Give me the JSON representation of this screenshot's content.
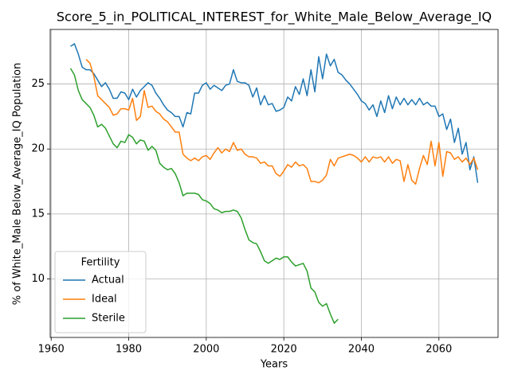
{
  "chart_data": {
    "type": "line",
    "title": "Score_5_in_POLITICAL_INTEREST_for_White_Male_Below_Average_IQ",
    "xlabel": "Years",
    "ylabel": "% of White_Male Below_Average_IQ Population",
    "x": [
      1965,
      1966,
      1967,
      1968,
      1969,
      1970,
      1971,
      1972,
      1973,
      1974,
      1975,
      1976,
      1977,
      1978,
      1979,
      1980,
      1981,
      1982,
      1983,
      1984,
      1985,
      1986,
      1987,
      1988,
      1989,
      1990,
      1991,
      1992,
      1993,
      1994,
      1995,
      1996,
      1997,
      1998,
      1999,
      2000,
      2001,
      2002,
      2003,
      2004,
      2005,
      2006,
      2007,
      2008,
      2009,
      2010,
      2011,
      2012,
      2013,
      2014,
      2015,
      2016,
      2017,
      2018,
      2019,
      2020,
      2021,
      2022,
      2023,
      2024,
      2025,
      2026,
      2027,
      2028,
      2029,
      2030,
      2031,
      2032,
      2033,
      2034,
      2035,
      2036,
      2037,
      2038,
      2039,
      2040,
      2041,
      2042,
      2043,
      2044,
      2045,
      2046,
      2047,
      2048,
      2049,
      2050,
      2051,
      2052,
      2053,
      2054,
      2055,
      2056,
      2057,
      2058,
      2059,
      2060,
      2061,
      2062,
      2063,
      2064,
      2065,
      2066,
      2067,
      2068,
      2069,
      2070
    ],
    "series": [
      {
        "name": "Actual",
        "color": "#1f77b4",
        "values": [
          27.9,
          28.1,
          27.3,
          26.3,
          26.1,
          26.1,
          25.8,
          25.3,
          24.8,
          25.1,
          24.6,
          23.9,
          23.9,
          24.4,
          24.3,
          23.8,
          24.6,
          24.0,
          24.5,
          24.8,
          25.1,
          24.9,
          24.3,
          23.9,
          23.4,
          23.0,
          22.8,
          22.5,
          22.5,
          21.7,
          22.8,
          22.7,
          24.3,
          24.3,
          24.9,
          25.1,
          24.6,
          24.9,
          24.7,
          24.5,
          24.9,
          25.0,
          26.1,
          25.2,
          25.1,
          25.1,
          24.9,
          24.0,
          24.7,
          23.4,
          24.1,
          23.4,
          23.5,
          22.9,
          23.0,
          23.2,
          24.0,
          23.7,
          24.8,
          24.2,
          25.4,
          24.1,
          26.1,
          24.4,
          27.1,
          25.4,
          27.3,
          26.4,
          26.9,
          25.9,
          25.7,
          25.3,
          25.0,
          24.6,
          24.2,
          23.7,
          23.5,
          23.0,
          23.4,
          22.5,
          23.7,
          22.8,
          24.1,
          23.1,
          24.0,
          23.4,
          23.9,
          23.4,
          23.8,
          23.4,
          23.9,
          23.4,
          23.6,
          23.3,
          23.3,
          22.5,
          22.7,
          21.5,
          22.3,
          20.5,
          21.6,
          19.6,
          20.5,
          18.4,
          19.4,
          17.4
        ]
      },
      {
        "name": "Ideal",
        "color": "#ff7f0e",
        "values": [
          null,
          null,
          null,
          null,
          26.9,
          26.6,
          25.6,
          24.1,
          23.8,
          23.5,
          23.2,
          22.6,
          22.7,
          23.1,
          23.1,
          23.0,
          23.9,
          22.2,
          22.5,
          24.5,
          23.2,
          23.3,
          22.9,
          22.7,
          22.3,
          22.1,
          21.7,
          21.3,
          21.3,
          19.6,
          19.3,
          19.1,
          19.3,
          19.1,
          19.4,
          19.5,
          19.2,
          19.7,
          20.1,
          19.7,
          20.0,
          19.8,
          20.5,
          19.9,
          20.0,
          19.6,
          19.4,
          19.4,
          19.3,
          18.9,
          19.0,
          18.7,
          18.7,
          18.1,
          17.9,
          18.3,
          18.8,
          18.6,
          19.0,
          18.7,
          18.8,
          18.5,
          17.5,
          17.5,
          17.4,
          17.6,
          18.0,
          19.2,
          18.7,
          19.3,
          19.4,
          19.5,
          19.6,
          19.5,
          19.3,
          19.0,
          19.4,
          19.0,
          19.4,
          19.3,
          19.4,
          19.0,
          19.4,
          18.9,
          19.2,
          19.1,
          17.5,
          18.8,
          17.6,
          17.3,
          18.5,
          19.5,
          18.8,
          20.6,
          18.7,
          20.5,
          17.9,
          19.8,
          19.7,
          19.2,
          19.4,
          19.0,
          19.3,
          18.8,
          19.3,
          18.4
        ]
      },
      {
        "name": "Sterile",
        "color": "#2ca02c",
        "values": [
          26.2,
          25.7,
          24.5,
          23.8,
          23.5,
          23.2,
          22.6,
          21.7,
          21.9,
          21.6,
          21.0,
          20.4,
          20.1,
          20.6,
          20.5,
          21.1,
          20.9,
          20.4,
          20.7,
          20.6,
          19.9,
          20.2,
          19.9,
          18.9,
          18.6,
          18.4,
          18.5,
          18.1,
          17.4,
          16.4,
          16.6,
          16.6,
          16.6,
          16.5,
          16.1,
          16.0,
          15.8,
          15.4,
          15.3,
          15.1,
          15.2,
          15.2,
          15.3,
          15.2,
          14.7,
          13.8,
          13.0,
          12.8,
          12.7,
          12.1,
          11.4,
          11.2,
          11.4,
          11.6,
          11.5,
          11.7,
          11.7,
          11.3,
          11.0,
          11.1,
          11.2,
          10.6,
          9.3,
          9.0,
          8.2,
          7.9,
          8.1,
          7.3,
          6.6,
          6.9,
          null,
          null,
          null,
          null,
          null,
          null,
          null,
          null,
          null,
          null,
          null,
          null,
          null,
          null,
          null,
          null,
          null,
          null,
          null,
          null,
          null,
          null,
          null,
          null,
          null,
          null,
          null,
          null,
          null,
          null,
          null,
          null,
          null,
          null,
          null,
          null
        ]
      }
    ],
    "xlim": [
      1959.75,
      2075.25
    ],
    "ylim": [
      5.5,
      29.2
    ],
    "xticks": [
      1960,
      1980,
      2000,
      2020,
      2040,
      2060
    ],
    "yticks": [
      10,
      15,
      20,
      25
    ],
    "grid": true,
    "legend": {
      "title": "Fertility",
      "loc": "lower left"
    }
  }
}
